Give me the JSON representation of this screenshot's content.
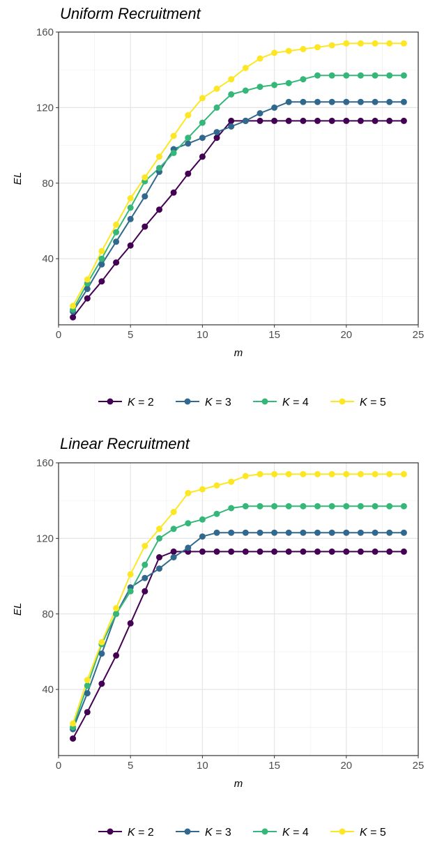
{
  "chart_data": [
    {
      "type": "line",
      "title": "Uniform Recruitment",
      "xlabel": "m",
      "ylabel": "EL",
      "xlim": [
        0,
        25
      ],
      "ylim": [
        5,
        160
      ],
      "xticks": [
        0,
        5,
        10,
        15,
        20,
        25
      ],
      "yticks": [
        40,
        80,
        120,
        160
      ],
      "grid": true,
      "legend_position": "bottom",
      "x": [
        1,
        2,
        3,
        4,
        5,
        6,
        7,
        8,
        9,
        10,
        11,
        12,
        13,
        14,
        15,
        16,
        17,
        18,
        19,
        20,
        21,
        22,
        23,
        24
      ],
      "series": [
        {
          "name": "K = 2",
          "color": "#440154",
          "values": [
            9,
            19,
            28,
            38,
            47,
            57,
            66,
            75,
            85,
            94,
            104,
            113,
            113,
            113,
            113,
            113,
            113,
            113,
            113,
            113,
            113,
            113,
            113,
            113
          ]
        },
        {
          "name": "K = 3",
          "color": "#31688E",
          "values": [
            12,
            24,
            37,
            49,
            61,
            73,
            86,
            98,
            101,
            104,
            107,
            110,
            113,
            117,
            120,
            123,
            123,
            123,
            123,
            123,
            123,
            123,
            123,
            123
          ]
        },
        {
          "name": "K = 4",
          "color": "#35B779",
          "values": [
            13,
            27,
            40,
            54,
            67,
            81,
            88,
            96,
            104,
            112,
            120,
            127,
            129,
            131,
            132,
            133,
            135,
            137,
            137,
            137,
            137,
            137,
            137,
            137
          ]
        },
        {
          "name": "K = 5",
          "color": "#FDE725",
          "values": [
            15,
            29,
            44,
            58,
            72,
            83,
            94,
            105,
            116,
            125,
            130,
            135,
            141,
            146,
            149,
            150,
            151,
            152,
            153,
            154,
            154,
            154,
            154,
            154
          ]
        }
      ]
    },
    {
      "type": "line",
      "title": "Linear Recruitment",
      "xlabel": "m",
      "ylabel": "EL",
      "xlim": [
        0,
        25
      ],
      "ylim": [
        5,
        160
      ],
      "xticks": [
        0,
        5,
        10,
        15,
        20,
        25
      ],
      "yticks": [
        40,
        80,
        120,
        160
      ],
      "grid": true,
      "legend_position": "bottom",
      "x": [
        1,
        2,
        3,
        4,
        5,
        6,
        7,
        8,
        9,
        10,
        11,
        12,
        13,
        14,
        15,
        16,
        17,
        18,
        19,
        20,
        21,
        22,
        23,
        24
      ],
      "series": [
        {
          "name": "K = 2",
          "color": "#440154",
          "values": [
            14,
            28,
            43,
            58,
            75,
            92,
            110,
            113,
            113,
            113,
            113,
            113,
            113,
            113,
            113,
            113,
            113,
            113,
            113,
            113,
            113,
            113,
            113,
            113
          ]
        },
        {
          "name": "K = 3",
          "color": "#31688E",
          "values": [
            19,
            38,
            59,
            80,
            94,
            99,
            104,
            110,
            115,
            121,
            123,
            123,
            123,
            123,
            123,
            123,
            123,
            123,
            123,
            123,
            123,
            123,
            123,
            123
          ]
        },
        {
          "name": "K = 4",
          "color": "#35B779",
          "values": [
            20,
            42,
            64,
            80,
            92,
            106,
            120,
            125,
            128,
            130,
            133,
            136,
            137,
            137,
            137,
            137,
            137,
            137,
            137,
            137,
            137,
            137,
            137,
            137
          ]
        },
        {
          "name": "K = 5",
          "color": "#FDE725",
          "values": [
            22,
            45,
            65,
            83,
            101,
            116,
            125,
            134,
            144,
            146,
            148,
            150,
            153,
            154,
            154,
            154,
            154,
            154,
            154,
            154,
            154,
            154,
            154,
            154
          ]
        }
      ]
    }
  ]
}
